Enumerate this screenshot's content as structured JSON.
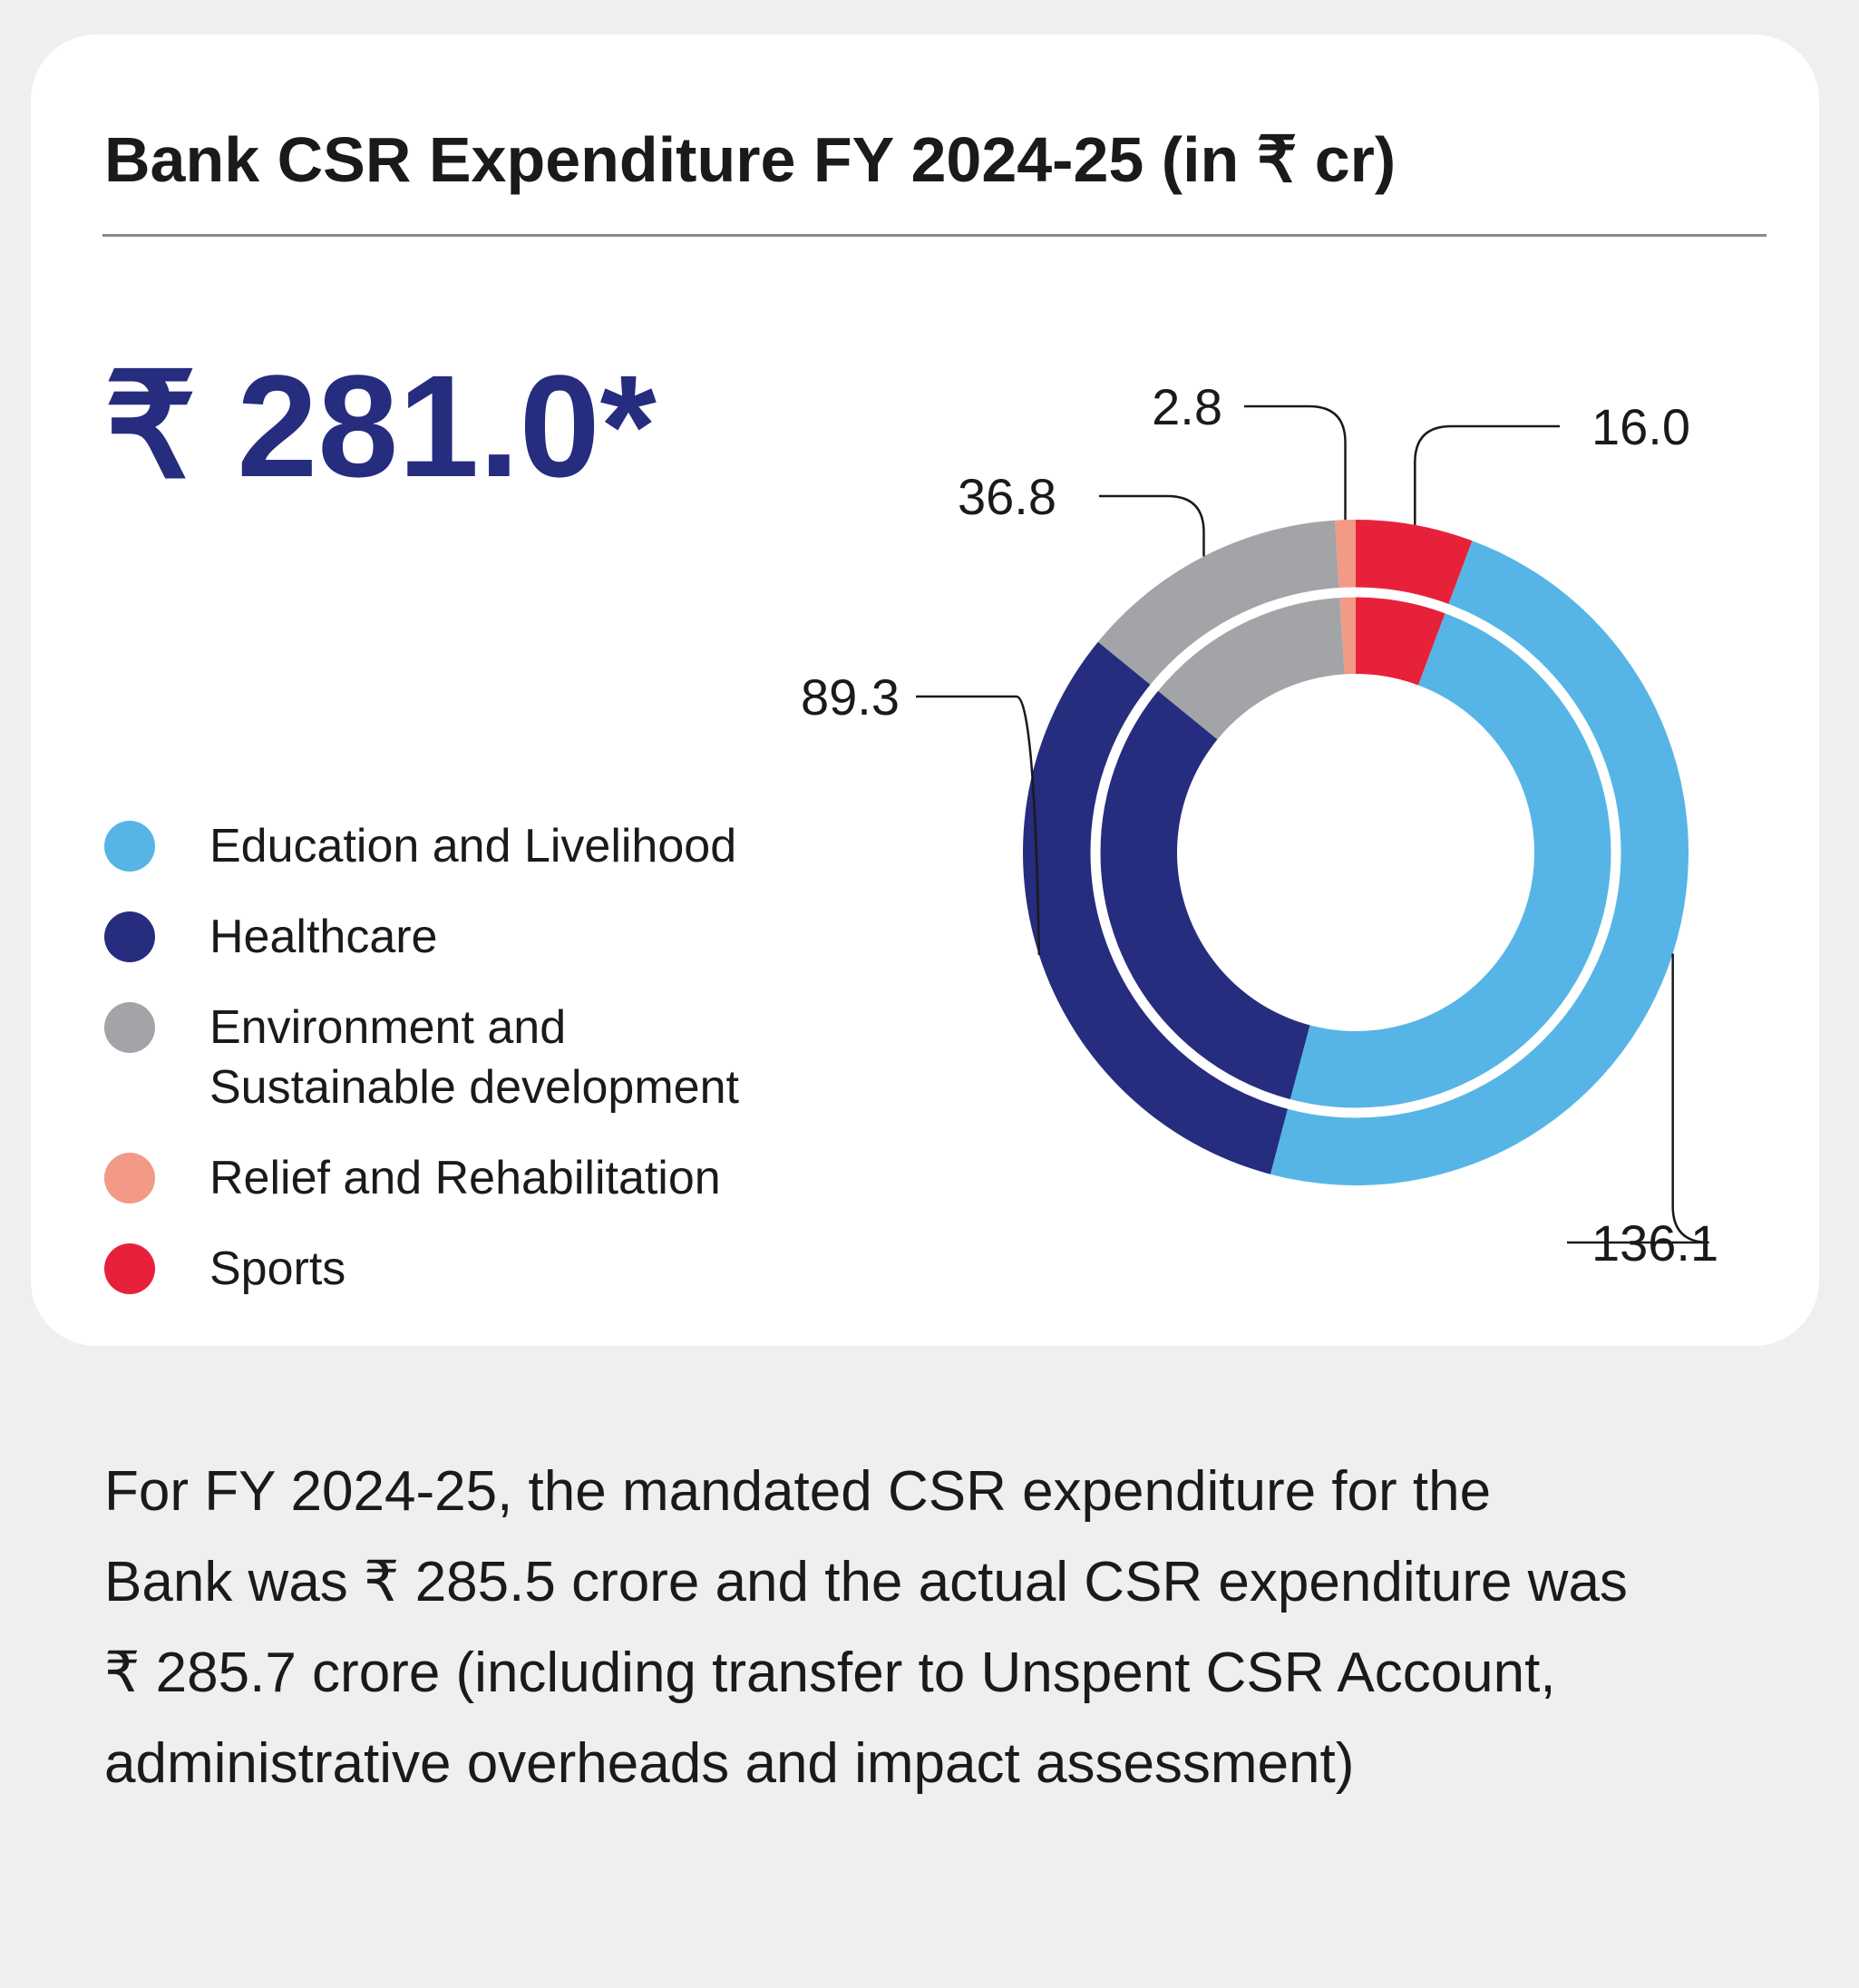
{
  "title": "Bank CSR Expenditure FY 2024-25 (in ₹ cr)",
  "total": "₹ 281.0*",
  "legend": [
    {
      "label_lines": [
        "Education and Livelihood"
      ],
      "color": "#56b5e6"
    },
    {
      "label_lines": [
        "Healthcare"
      ],
      "color": "#262c7e"
    },
    {
      "label_lines": [
        "Environment and",
        "Sustainable development"
      ],
      "color": "#a3a4a8"
    },
    {
      "label_lines": [
        "Relief and Rehabilitation"
      ],
      "color": "#f29a86"
    },
    {
      "label_lines": [
        "Sports"
      ],
      "color": "#e8213a"
    }
  ],
  "chart_data": {
    "type": "pie",
    "style": "double donut",
    "title": "Bank CSR Expenditure FY 2024-25 (in ₹ cr)",
    "total": 281.0,
    "categories": [
      "Sports",
      "Education and Livelihood",
      "Healthcare",
      "Environment and Sustainable development",
      "Relief and Rehabilitation"
    ],
    "values": [
      16.0,
      136.1,
      89.3,
      36.8,
      2.8
    ],
    "value_labels": [
      "16.0",
      "136.1",
      "89.3",
      "36.8",
      "2.8"
    ],
    "colors": [
      "#e8213a",
      "#56b5e6",
      "#262c7e",
      "#a3a4a8",
      "#f29a86"
    ],
    "legend_position": "left"
  },
  "note_lines": [
    "For FY 2024-25, the mandated CSR expenditure for the",
    "Bank was ₹ 285.5 crore and the actual CSR expenditure was",
    "₹ 285.7 crore (including transfer to Unspent CSR Account,",
    "administrative overheads and impact assessment)"
  ]
}
